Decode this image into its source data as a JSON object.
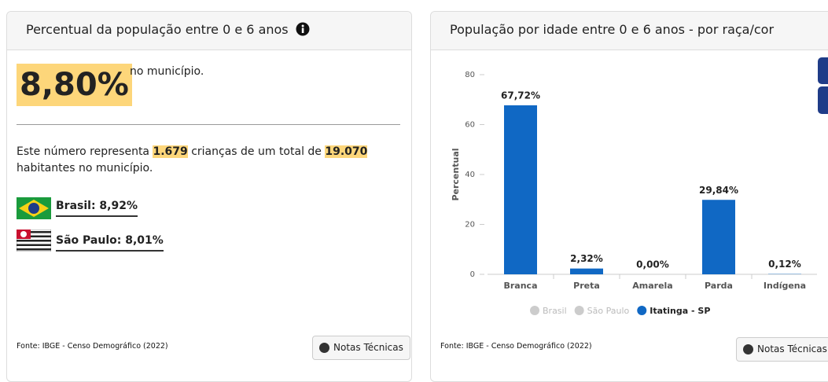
{
  "left_panel": {
    "title": "Percentual da população entre 0 e 6 anos",
    "big_value": "8,80%",
    "big_value_suffix": "no município.",
    "sentence": [
      "Este número representa ",
      "1.679",
      " crianças de um total de ",
      "19.070",
      " habitantes no município."
    ],
    "comparisons": [
      "Brasil: 8,92%",
      "São Paulo: 8,01%"
    ],
    "source": "Fonte: IBGE - Censo Demográfico (2022)",
    "button": "Notas Técnicas"
  },
  "right_panel": {
    "source": "Fonte: IBGE - Censo Demográfico (2022)",
    "button": "Notas Técnicas"
  },
  "chart_data": {
    "type": "bar",
    "title": "População por idade entre 0 e 6 anos - por raça/cor",
    "y_label": "Percentual",
    "categories": [
      "Branca",
      "Preta",
      "Amarela",
      "Parda",
      "Indígena"
    ],
    "series": [
      {
        "name": "Itatinga - SP",
        "color": "#1068c4",
        "values": [
          67.72,
          2.32,
          0.0,
          29.84,
          0.12
        ],
        "value_labels": [
          "67,72%",
          "2,32%",
          "0,00%",
          "29,84%",
          "0,12%"
        ]
      }
    ],
    "inactive_series": [
      {
        "name": "Brasil",
        "color": "#cccccc"
      },
      {
        "name": "São Paulo",
        "color": "#cccccc"
      }
    ],
    "ylim": [
      0,
      80
    ],
    "yticks": [
      0,
      20,
      40,
      60,
      80
    ],
    "grid": false
  }
}
